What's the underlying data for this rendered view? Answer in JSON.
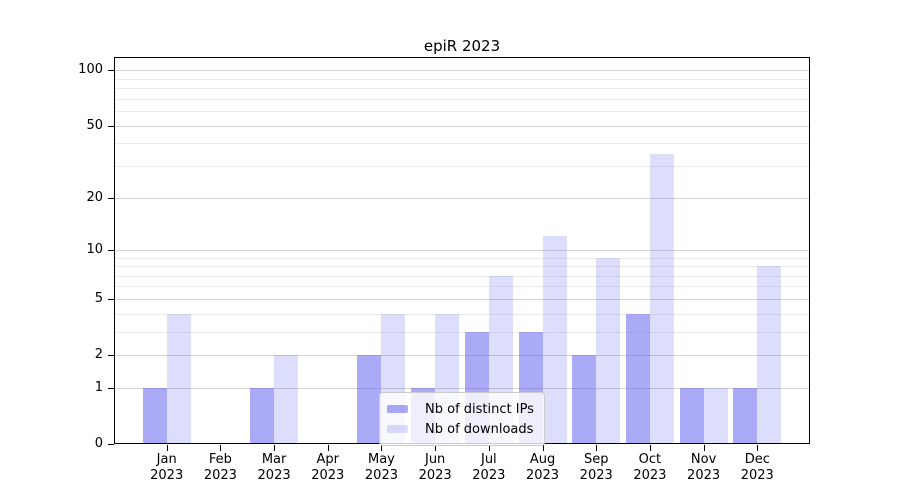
{
  "title": "epiR 2023",
  "chart_data": {
    "type": "bar",
    "title": "epiR 2023",
    "categories": [
      {
        "month": "Jan",
        "year": "2023"
      },
      {
        "month": "Feb",
        "year": "2023"
      },
      {
        "month": "Mar",
        "year": "2023"
      },
      {
        "month": "Apr",
        "year": "2023"
      },
      {
        "month": "May",
        "year": "2023"
      },
      {
        "month": "Jun",
        "year": "2023"
      },
      {
        "month": "Jul",
        "year": "2023"
      },
      {
        "month": "Aug",
        "year": "2023"
      },
      {
        "month": "Sep",
        "year": "2023"
      },
      {
        "month": "Oct",
        "year": "2023"
      },
      {
        "month": "Nov",
        "year": "2023"
      },
      {
        "month": "Dec",
        "year": "2023"
      }
    ],
    "series": [
      {
        "name": "Nb of distinct IPs",
        "color": "rgba(85,85,238,0.5)",
        "values": [
          1,
          0,
          1,
          0,
          2,
          1,
          3,
          3,
          2,
          4,
          1,
          1
        ]
      },
      {
        "name": "Nb of downloads",
        "color": "rgba(85,85,238,0.2)",
        "values": [
          4,
          0,
          2,
          0,
          4,
          4,
          7,
          12,
          9,
          35,
          1,
          8
        ]
      }
    ],
    "xlabel": "",
    "ylabel": "",
    "y_axis": {
      "scale": "log1p",
      "ticks": [
        0,
        1,
        2,
        5,
        10,
        20,
        50,
        100
      ],
      "minor_gridlines": [
        3,
        4,
        6,
        7,
        8,
        9,
        30,
        40,
        60,
        70,
        80,
        90
      ],
      "ylim": [
        0,
        118
      ]
    },
    "grid": true,
    "legend": {
      "position": "lower-center"
    }
  },
  "colors": {
    "bar_base": "#5555ee",
    "major_grid": "#d4d4d4",
    "minor_grid": "#ececec",
    "axis": "#000000"
  }
}
